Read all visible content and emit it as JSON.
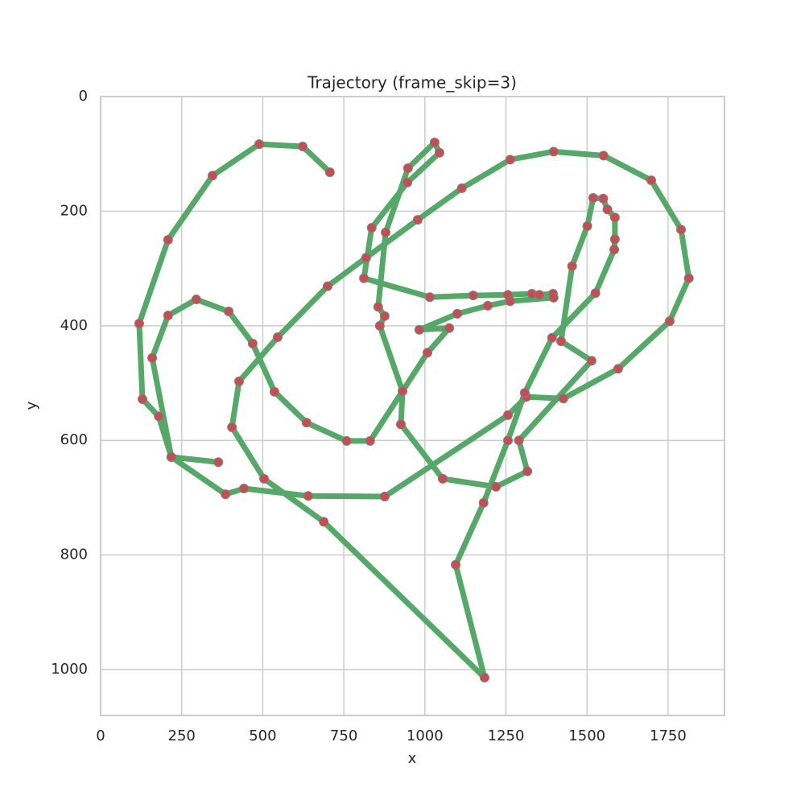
{
  "chart_data": {
    "type": "line",
    "title": "Trajectory (frame_skip=3)",
    "x_label": "x",
    "y_label": "y",
    "x": [
      707,
      623,
      489,
      345,
      208,
      119,
      129,
      179,
      218,
      385,
      442,
      640,
      876,
      1256,
      1313,
      1427,
      1596,
      1755,
      1814,
      1790,
      1698,
      1551,
      1397,
      1263,
      1114,
      978,
      819,
      700,
      546,
      427,
      405,
      504,
      688,
      1184,
      1095,
      1181,
      1256,
      1308,
      1392,
      1526,
      1584,
      1586,
      1586,
      1563,
      1550,
      1519,
      1501,
      1454,
      1420,
      1514,
      1290,
      1316,
      1219,
      1055,
      926,
      931,
      861,
      876,
      856,
      879,
      948,
      1030,
      1045,
      946,
      836,
      812,
      1015,
      1149,
      1256,
      1330,
      1353,
      1395,
      1397,
      1263,
      1194,
      1100,
      983,
      1075,
      1008,
      831,
      759,
      635,
      536,
      469,
      395,
      295,
      208,
      159,
      218,
      363
    ],
    "values": [
      132,
      87,
      83,
      138,
      250,
      396,
      528,
      558,
      629,
      694,
      684,
      697,
      698,
      556,
      524,
      527,
      475,
      392,
      317,
      232,
      146,
      103,
      96,
      110,
      160,
      215,
      281,
      331,
      420,
      497,
      577,
      667,
      742,
      1014,
      817,
      709,
      600,
      517,
      421,
      343,
      267,
      249,
      211,
      197,
      178,
      177,
      226,
      296,
      427,
      461,
      600,
      654,
      681,
      667,
      572,
      514,
      400,
      383,
      367,
      237,
      125,
      80,
      98,
      150,
      229,
      317,
      350,
      347,
      346,
      344,
      346,
      344,
      351,
      357,
      365,
      379,
      407,
      404,
      447,
      601,
      601,
      569,
      515,
      431,
      375,
      354,
      382,
      456,
      629,
      638
    ],
    "color": "#55a868",
    "marker_color": "#c44e52",
    "grid": true,
    "xlim": [
      0,
      1924
    ],
    "xticks": [
      0,
      250,
      500,
      750,
      1000,
      1250,
      1500,
      1750
    ],
    "ylim": [
      1080,
      0
    ],
    "yticks": [
      0,
      200,
      400,
      600,
      800,
      1000
    ]
  }
}
